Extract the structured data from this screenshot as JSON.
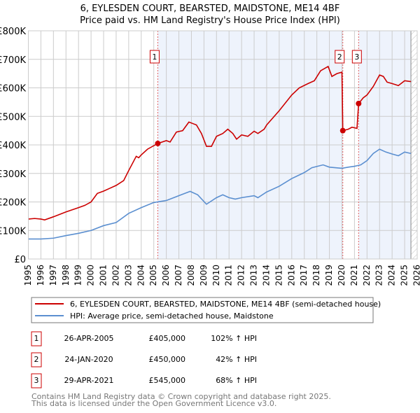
{
  "chart_data": {
    "type": "line",
    "title": "6, EYLESDEN COURT, BEARSTED, MAIDSTONE, ME14 4BF",
    "subtitle": "Price paid vs. HM Land Registry's House Price Index (HPI)",
    "xlim": [
      1995,
      2026
    ],
    "ylim": [
      0,
      800000
    ],
    "y_ticks": [
      {
        "v": 0,
        "label": "£0"
      },
      {
        "v": 100000,
        "label": "£100K"
      },
      {
        "v": 200000,
        "label": "£200K"
      },
      {
        "v": 300000,
        "label": "£300K"
      },
      {
        "v": 400000,
        "label": "£400K"
      },
      {
        "v": 500000,
        "label": "£500K"
      },
      {
        "v": 600000,
        "label": "£600K"
      },
      {
        "v": 700000,
        "label": "£700K"
      },
      {
        "v": 800000,
        "label": "£800K"
      }
    ],
    "x_ticks": [
      "1995",
      "1996",
      "1997",
      "1998",
      "1999",
      "2000",
      "2001",
      "2002",
      "2003",
      "2004",
      "2005",
      "2006",
      "2007",
      "2008",
      "2009",
      "2010",
      "2011",
      "2012",
      "2013",
      "2014",
      "2015",
      "2016",
      "2017",
      "2018",
      "2019",
      "2020",
      "2021",
      "2022",
      "2023",
      "2024",
      "2025",
      "2026"
    ],
    "grid": true,
    "series": [
      {
        "name": "6, EYLESDEN COURT, BEARSTED, MAIDSTONE, ME14 4BF (semi-detached house)",
        "color": "#cc0000",
        "points": [
          [
            1995,
            140
          ],
          [
            1995.5,
            142
          ],
          [
            1996,
            140
          ],
          [
            1996.3,
            137
          ],
          [
            1997,
            148
          ],
          [
            1998,
            165
          ],
          [
            1999,
            180
          ],
          [
            1999.5,
            188
          ],
          [
            2000,
            200
          ],
          [
            2000.5,
            230
          ],
          [
            2001,
            238
          ],
          [
            2001.5,
            248
          ],
          [
            2002,
            258
          ],
          [
            2002.6,
            275
          ],
          [
            2003,
            310
          ],
          [
            2003.6,
            360
          ],
          [
            2003.8,
            355
          ],
          [
            2004,
            365
          ],
          [
            2004.5,
            385
          ],
          [
            2005.32,
            405
          ],
          [
            2006,
            415
          ],
          [
            2006.3,
            410
          ],
          [
            2006.8,
            445
          ],
          [
            2007.3,
            450
          ],
          [
            2007.8,
            480
          ],
          [
            2008.1,
            475
          ],
          [
            2008.4,
            470
          ],
          [
            2008.8,
            440
          ],
          [
            2009.2,
            395
          ],
          [
            2009.6,
            395
          ],
          [
            2010,
            430
          ],
          [
            2010.5,
            440
          ],
          [
            2010.9,
            455
          ],
          [
            2011.3,
            440
          ],
          [
            2011.6,
            420
          ],
          [
            2012,
            435
          ],
          [
            2012.5,
            430
          ],
          [
            2013,
            448
          ],
          [
            2013.3,
            440
          ],
          [
            2013.8,
            455
          ],
          [
            2014,
            470
          ],
          [
            2015,
            520
          ],
          [
            2016,
            575
          ],
          [
            2016.6,
            600
          ],
          [
            2017.3,
            615
          ],
          [
            2017.8,
            625
          ],
          [
            2018.3,
            660
          ],
          [
            2018.9,
            675
          ],
          [
            2019.2,
            640
          ],
          [
            2019.6,
            650
          ],
          [
            2020.0,
            655
          ],
          [
            2020.07,
            450
          ],
          [
            2020.5,
            455
          ],
          [
            2020.8,
            462
          ],
          [
            2021.2,
            458
          ],
          [
            2021.33,
            545
          ],
          [
            2021.7,
            565
          ],
          [
            2022,
            575
          ],
          [
            2022.5,
            605
          ],
          [
            2023,
            645
          ],
          [
            2023.3,
            640
          ],
          [
            2023.6,
            620
          ],
          [
            2024,
            615
          ],
          [
            2024.5,
            608
          ],
          [
            2025,
            625
          ],
          [
            2025.5,
            622
          ]
        ]
      },
      {
        "name": "HPI: Average price, semi-detached house, Maidstone",
        "color": "#5b8fd0",
        "points": [
          [
            1995,
            70
          ],
          [
            1996,
            70
          ],
          [
            1997,
            73
          ],
          [
            1998,
            82
          ],
          [
            1999,
            90
          ],
          [
            2000,
            100
          ],
          [
            2001,
            117
          ],
          [
            2002,
            128
          ],
          [
            2003,
            160
          ],
          [
            2004,
            180
          ],
          [
            2005,
            198
          ],
          [
            2006,
            205
          ],
          [
            2007,
            222
          ],
          [
            2007.9,
            237
          ],
          [
            2008.5,
            225
          ],
          [
            2009.2,
            192
          ],
          [
            2010,
            215
          ],
          [
            2010.5,
            225
          ],
          [
            2011,
            215
          ],
          [
            2011.5,
            210
          ],
          [
            2012,
            215
          ],
          [
            2013,
            222
          ],
          [
            2013.3,
            215
          ],
          [
            2014,
            235
          ],
          [
            2015,
            255
          ],
          [
            2016,
            282
          ],
          [
            2017,
            303
          ],
          [
            2017.6,
            320
          ],
          [
            2018.5,
            330
          ],
          [
            2019,
            322
          ],
          [
            2020,
            318
          ],
          [
            2020.5,
            322
          ],
          [
            2021,
            325
          ],
          [
            2021.5,
            330
          ],
          [
            2022,
            345
          ],
          [
            2022.5,
            370
          ],
          [
            2023,
            385
          ],
          [
            2023.5,
            375
          ],
          [
            2024,
            368
          ],
          [
            2024.5,
            362
          ],
          [
            2025,
            375
          ],
          [
            2025.5,
            370
          ]
        ]
      }
    ],
    "y_units": "thousands GBP",
    "sales": [
      {
        "id": "1",
        "x": 2005.32,
        "value": 405000,
        "date": "26-APR-2005",
        "price": "£405,000",
        "hpi": "102% ↑ HPI"
      },
      {
        "id": "2",
        "x": 2020.07,
        "value": 450000,
        "date": "24-JAN-2020",
        "price": "£450,000",
        "hpi": "42% ↑ HPI"
      },
      {
        "id": "3",
        "x": 2021.33,
        "value": 545000,
        "date": "29-APR-2021",
        "price": "£545,000",
        "hpi": "68% ↑ HPI"
      }
    ],
    "shaded_ranges": [
      [
        2005.32,
        2020.07
      ],
      [
        2021.33,
        2025.5
      ]
    ],
    "hatched_range": [
      2025.5,
      2026
    ],
    "legend_placement": "bottom"
  },
  "footer": [
    "Contains HM Land Registry data © Crown copyright and database right 2025.",
    "This data is licensed under the Open Government Licence v3.0."
  ],
  "colors": {
    "red": "#cc0000",
    "blue": "#5b8fd0",
    "shade": "#eef3fc"
  }
}
